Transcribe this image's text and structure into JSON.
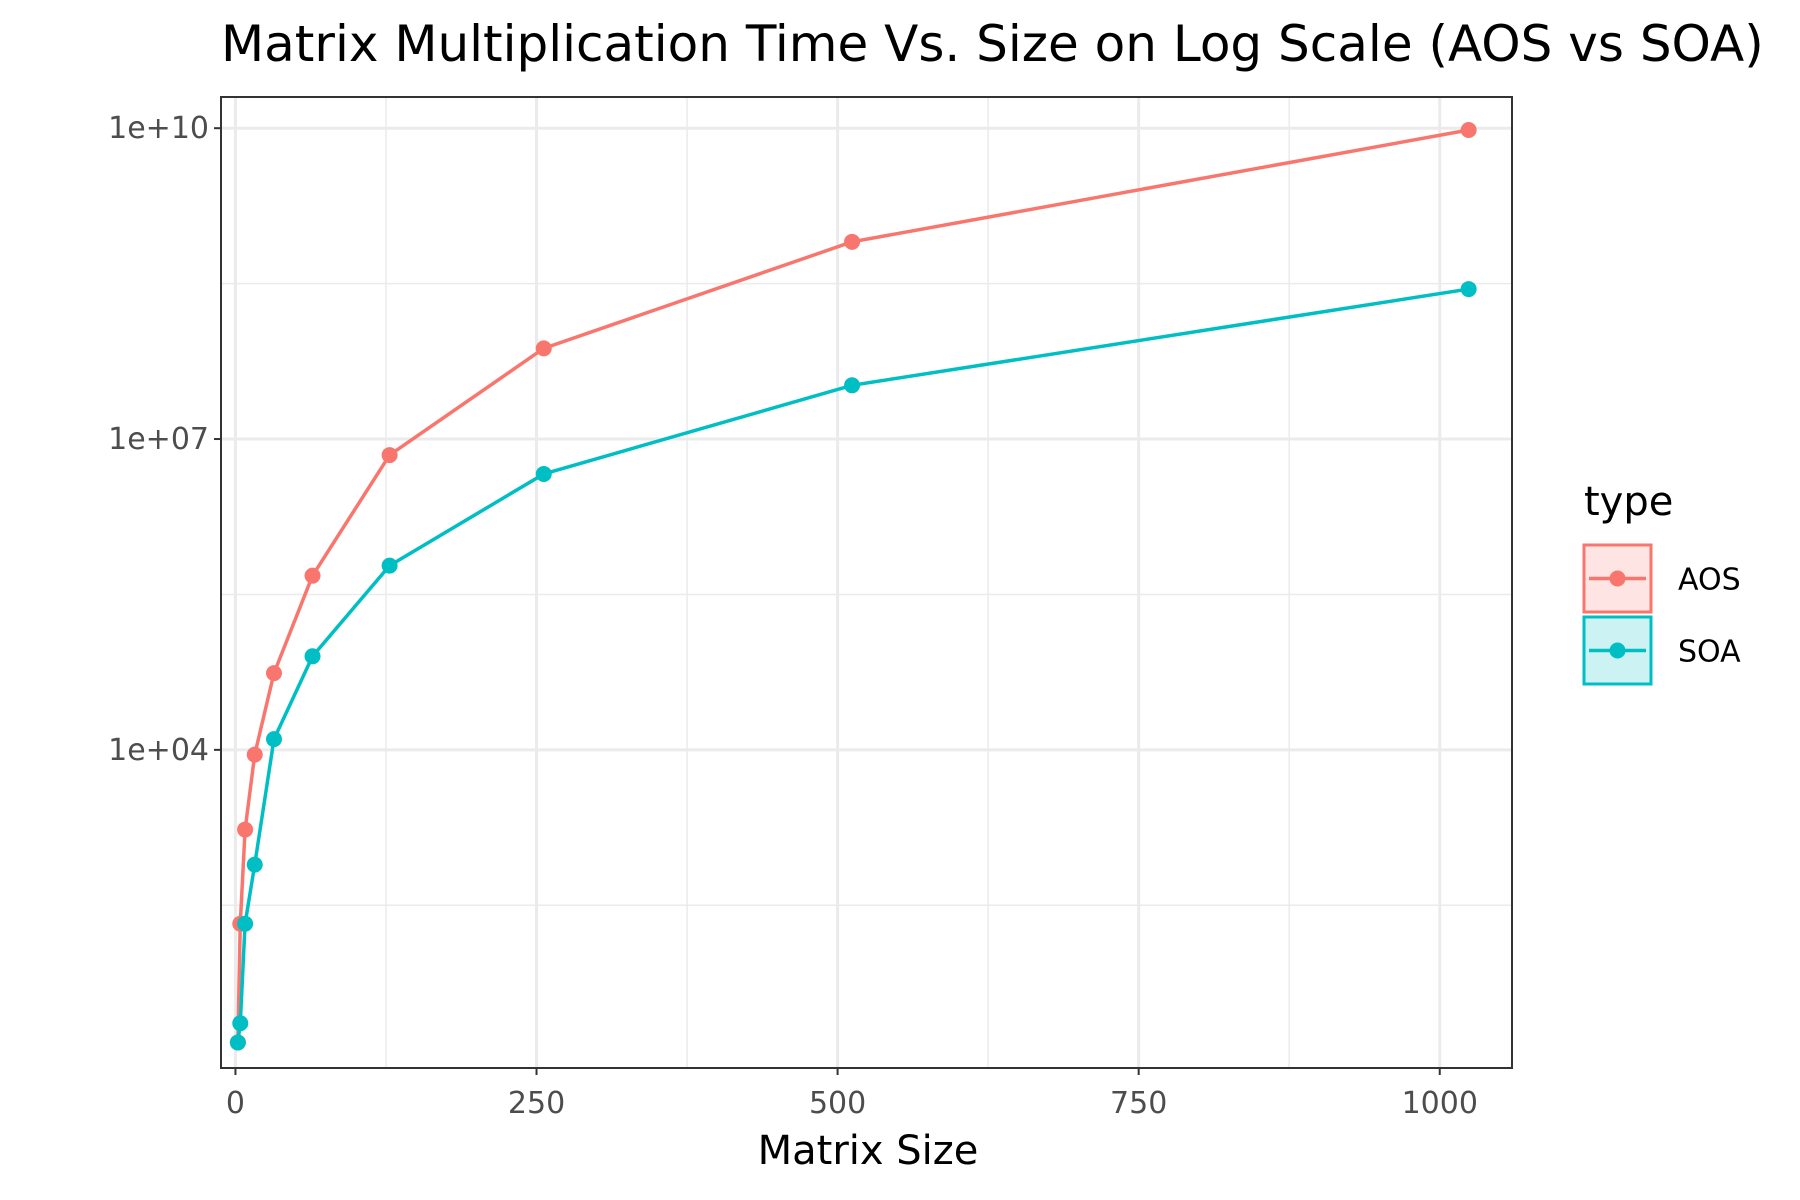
{
  "chart_data": {
    "type": "line",
    "title": "Matrix Multiplication Time Vs. Size on Log Scale (AOS vs SOA)",
    "xlabel": "Matrix Size",
    "ylabel": "",
    "y_scale": "log10",
    "xlim": [
      -12,
      1060
    ],
    "ylim": [
      8.5,
      20000000000
    ],
    "x_ticks": [
      0,
      250,
      500,
      750,
      1000
    ],
    "x_tick_labels": [
      "0",
      "250",
      "500",
      "750",
      "1000"
    ],
    "y_ticks": [
      10000,
      10000000,
      10000000000
    ],
    "y_tick_labels": [
      "1e+04",
      "1e+07",
      "1e+10"
    ],
    "grid": true,
    "legend": {
      "title": "type",
      "position": "right"
    },
    "series": [
      {
        "name": "AOS",
        "color": "#F8766D",
        "x": [
          2,
          4,
          8,
          16,
          32,
          64,
          128,
          256,
          512,
          1024
        ],
        "y": [
          15,
          210,
          1700,
          9000,
          55000,
          480000,
          7000000,
          75000000,
          800000000,
          9600000000
        ]
      },
      {
        "name": "SOA",
        "color": "#00BFC4",
        "x": [
          2,
          4,
          8,
          16,
          32,
          64,
          128,
          256,
          512,
          1024
        ],
        "y": [
          15,
          23,
          210,
          780,
          12700,
          80000,
          600000,
          4600000,
          33000000,
          280000000
        ]
      }
    ]
  }
}
